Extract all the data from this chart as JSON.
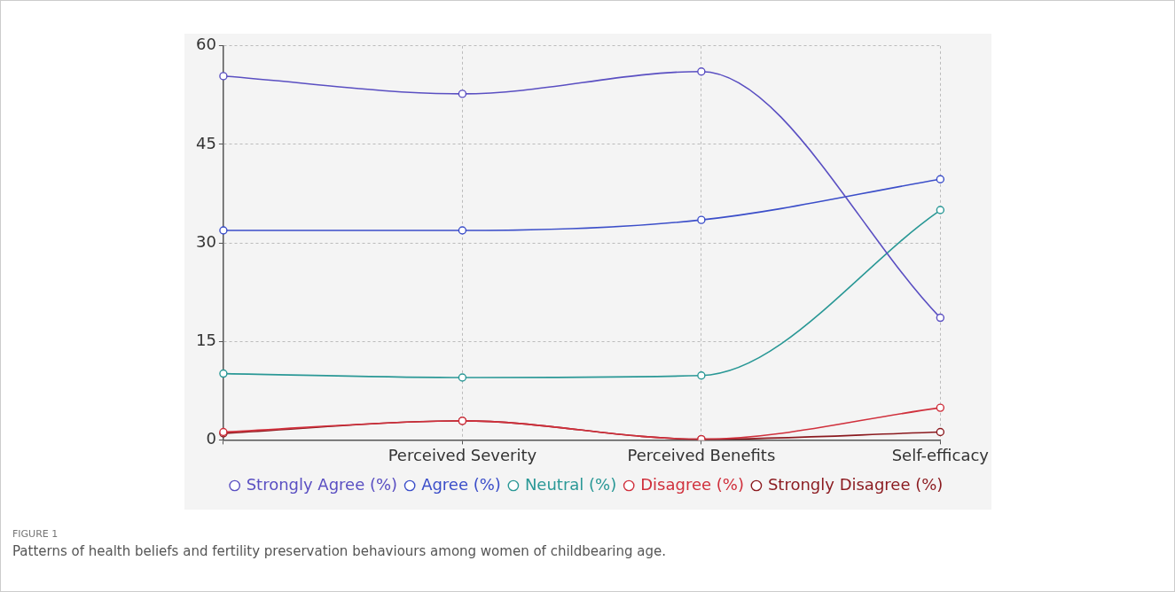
{
  "chart_data": {
    "type": "line",
    "categories": [
      null,
      "Perceived Severity",
      "Perceived Benefits",
      "Self-efficacy"
    ],
    "series": [
      {
        "name": "Strongly Agree (%)",
        "color": "#5a4fc2",
        "values": [
          55.4,
          52.7,
          56.1,
          18.6
        ]
      },
      {
        "name": "Agree (%)",
        "color": "#3b4ec9",
        "values": [
          31.9,
          31.9,
          33.5,
          39.7
        ]
      },
      {
        "name": "Neutral (%)",
        "color": "#2a9896",
        "values": [
          10.1,
          9.5,
          9.8,
          35.0
        ]
      },
      {
        "name": "Disagree (%)",
        "color": "#d0303c",
        "values": [
          1.2,
          2.9,
          0.1,
          4.9
        ]
      },
      {
        "name": "Strongly Disagree (%)",
        "color": "#8b1a1f",
        "values": [
          1.0,
          2.9,
          0.1,
          1.2
        ]
      }
    ],
    "ylim": [
      0,
      60
    ],
    "yticks": [
      0,
      15,
      30,
      45,
      60
    ],
    "grid": true,
    "legend": "bottom",
    "marker": "circle",
    "line_style": "solid",
    "annotations": [
      "FIGURE 1",
      "Patterns of health beliefs and fertility preservation behaviours among women of childbearing age."
    ]
  }
}
